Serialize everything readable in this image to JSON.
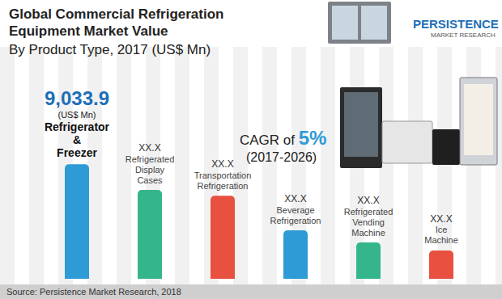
{
  "chart_data": {
    "type": "bar",
    "title": "Global Commercial Refrigeration Equipment Market Value",
    "subtitle": "By Product Type, 2017 (US$ Mn)",
    "categories": [
      "Refrigerator & Freezer",
      "Refrigerated Display Cases",
      "Transportation Refrigeration",
      "Beverage Refrigeration",
      "Refrigerated Vending Machine",
      "Ice Machine"
    ],
    "values": [
      9033.9,
      7000,
      6550,
      3820,
      2860,
      2230
    ],
    "value_labels": [
      "9,033.9",
      "XX.X",
      "XX.X",
      "XX.X",
      "XX.X",
      "XX.X"
    ],
    "unit_label": "(US$ Mn)",
    "colors": [
      "#2e9bd6",
      "#35b58c",
      "#e8503f",
      "#2e9bd6",
      "#35b58c",
      "#e8503f"
    ],
    "ylim": [
      0,
      10000
    ],
    "yticks": [
      0,
      10000
    ],
    "grid": false,
    "tick_labels": false,
    "data_labels": true,
    "annotations": [
      "CAGR of 5%",
      "(2017-2026)"
    ],
    "source": "Source: Persistence Market Research, 2018",
    "logo": [
      "PERSISTENCE",
      "MARKET RESEARCH"
    ]
  }
}
